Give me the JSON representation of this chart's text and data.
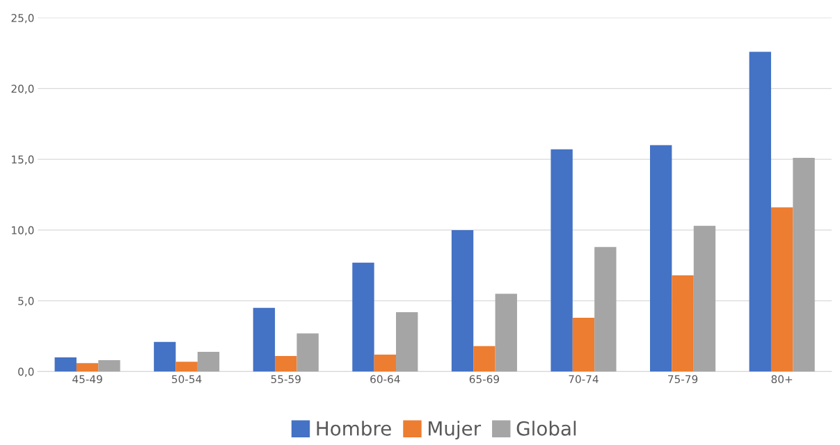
{
  "chart_data": {
    "type": "bar",
    "categories": [
      "45-49",
      "50-54",
      "55-59",
      "60-64",
      "65-69",
      "70-74",
      "75-79",
      "80+"
    ],
    "series": [
      {
        "name": "Hombre",
        "color": "#4472c4",
        "values": [
          1.0,
          2.1,
          4.5,
          7.7,
          10.0,
          15.7,
          16.0,
          22.6
        ]
      },
      {
        "name": "Mujer",
        "color": "#ed7d31",
        "values": [
          0.6,
          0.7,
          1.1,
          1.2,
          1.8,
          3.8,
          6.8,
          11.6
        ]
      },
      {
        "name": "Global",
        "color": "#a5a5a5",
        "values": [
          0.8,
          1.4,
          2.7,
          4.2,
          5.5,
          8.8,
          10.3,
          15.1
        ]
      }
    ],
    "ylim": [
      0,
      25
    ],
    "yticks": [
      {
        "value": 0,
        "label": "0,0"
      },
      {
        "value": 5,
        "label": "5,0"
      },
      {
        "value": 10,
        "label": "10,0"
      },
      {
        "value": 15,
        "label": "15,0"
      },
      {
        "value": 20,
        "label": "20,0"
      },
      {
        "value": 25,
        "label": "25,0"
      }
    ],
    "grid": "y",
    "legend": "bottom"
  }
}
